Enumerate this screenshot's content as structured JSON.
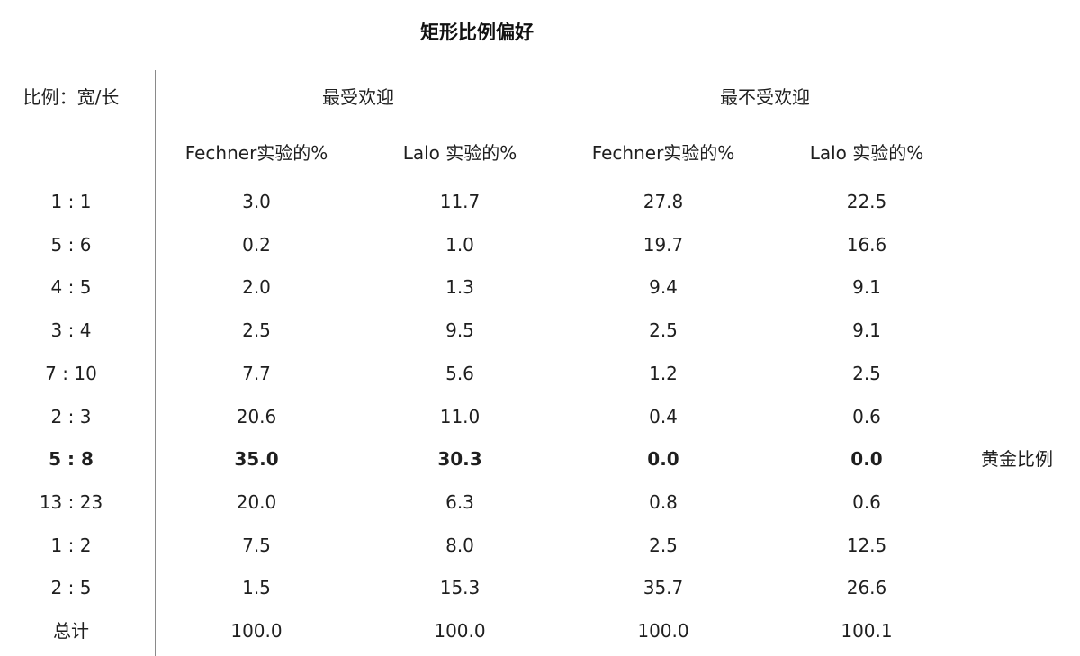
{
  "chart_data": {
    "type": "table",
    "title": "矩形比例偏好",
    "row_header_label": "比例：宽/长",
    "groups": [
      {
        "label": "最受欢迎",
        "columns": [
          "Fechner实验的%",
          "Lalo 实验的%"
        ]
      },
      {
        "label": "最不受欢迎",
        "columns": [
          "Fechner实验的%",
          "Lalo 实验的%"
        ]
      }
    ],
    "rows": [
      {
        "ratio": "1 : 1",
        "values": [
          "3.0",
          "11.7",
          "27.8",
          "22.5"
        ],
        "note": "",
        "bold": false
      },
      {
        "ratio": "5 : 6",
        "values": [
          "0.2",
          "1.0",
          "19.7",
          "16.6"
        ],
        "note": "",
        "bold": false
      },
      {
        "ratio": "4 : 5",
        "values": [
          "2.0",
          "1.3",
          "9.4",
          "9.1"
        ],
        "note": "",
        "bold": false
      },
      {
        "ratio": "3 : 4",
        "values": [
          "2.5",
          "9.5",
          "2.5",
          "9.1"
        ],
        "note": "",
        "bold": false
      },
      {
        "ratio": "7 : 10",
        "values": [
          "7.7",
          "5.6",
          "1.2",
          "2.5"
        ],
        "note": "",
        "bold": false
      },
      {
        "ratio": "2 : 3",
        "values": [
          "20.6",
          "11.0",
          "0.4",
          "0.6"
        ],
        "note": "",
        "bold": false
      },
      {
        "ratio": "5 : 8",
        "values": [
          "35.0",
          "30.3",
          "0.0",
          "0.0"
        ],
        "note": "黄金比例",
        "bold": true
      },
      {
        "ratio": "13 : 23",
        "values": [
          "20.0",
          "6.3",
          "0.8",
          "0.6"
        ],
        "note": "",
        "bold": false
      },
      {
        "ratio": "1 : 2",
        "values": [
          "7.5",
          "8.0",
          "2.5",
          "12.5"
        ],
        "note": "",
        "bold": false
      },
      {
        "ratio": "2 : 5",
        "values": [
          "1.5",
          "15.3",
          "35.7",
          "26.6"
        ],
        "note": "",
        "bold": false
      }
    ],
    "total": {
      "label": "总计",
      "values": [
        "100.0",
        "100.0",
        "100.0",
        "100.1"
      ]
    },
    "colors": {
      "text": "#1f1f1f",
      "divider": "#8a8a8a",
      "background": "#ffffff"
    }
  }
}
